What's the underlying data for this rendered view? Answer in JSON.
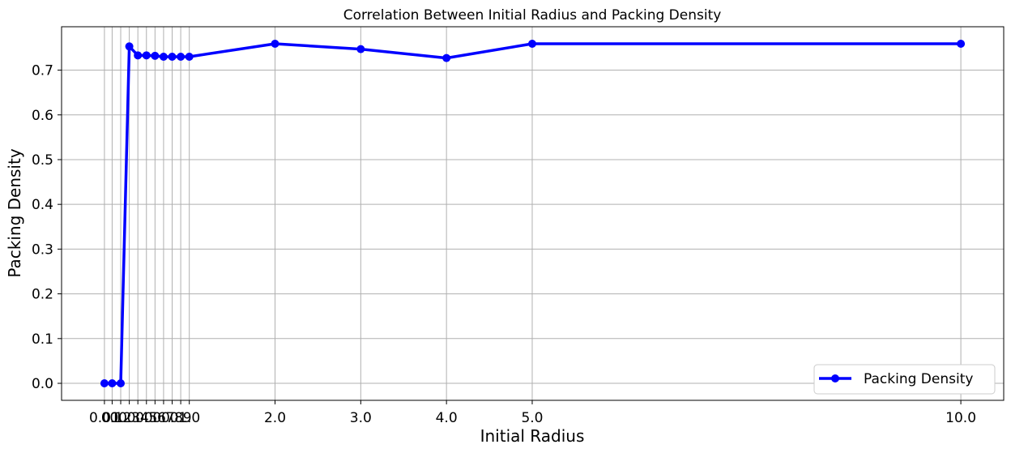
{
  "chart_data": {
    "type": "line",
    "title": "Correlation Between Initial Radius and Packing Density",
    "xlabel": "Initial Radius",
    "ylabel": "Packing Density",
    "x": [
      0.01,
      0.1,
      0.2,
      0.3,
      0.4,
      0.5,
      0.6,
      0.7,
      0.8,
      0.9,
      1.0,
      2.0,
      3.0,
      4.0,
      5.0,
      10.0
    ],
    "x_tick_labels": [
      "0.01",
      "0.1",
      "0.2",
      "0.3",
      "0.4",
      "0.5",
      "0.6",
      "0.7",
      "0.8",
      "0.9",
      "1.0",
      "2.0",
      "3.0",
      "4.0",
      "5.0",
      "10.0"
    ],
    "series": [
      {
        "name": "Packing Density",
        "color": "#0000ff",
        "values": [
          0.0,
          0.0,
          0.0,
          0.753,
          0.733,
          0.733,
          0.732,
          0.73,
          0.73,
          0.73,
          0.73,
          0.759,
          0.747,
          0.727,
          0.759,
          0.759
        ]
      }
    ],
    "y_ticks": [
      "0.0",
      "0.1",
      "0.2",
      "0.3",
      "0.4",
      "0.5",
      "0.6",
      "0.7"
    ],
    "xlim": [
      -0.49,
      10.5
    ],
    "ylim": [
      -0.038,
      0.797
    ],
    "grid": true,
    "legend_position": "lower-right"
  }
}
